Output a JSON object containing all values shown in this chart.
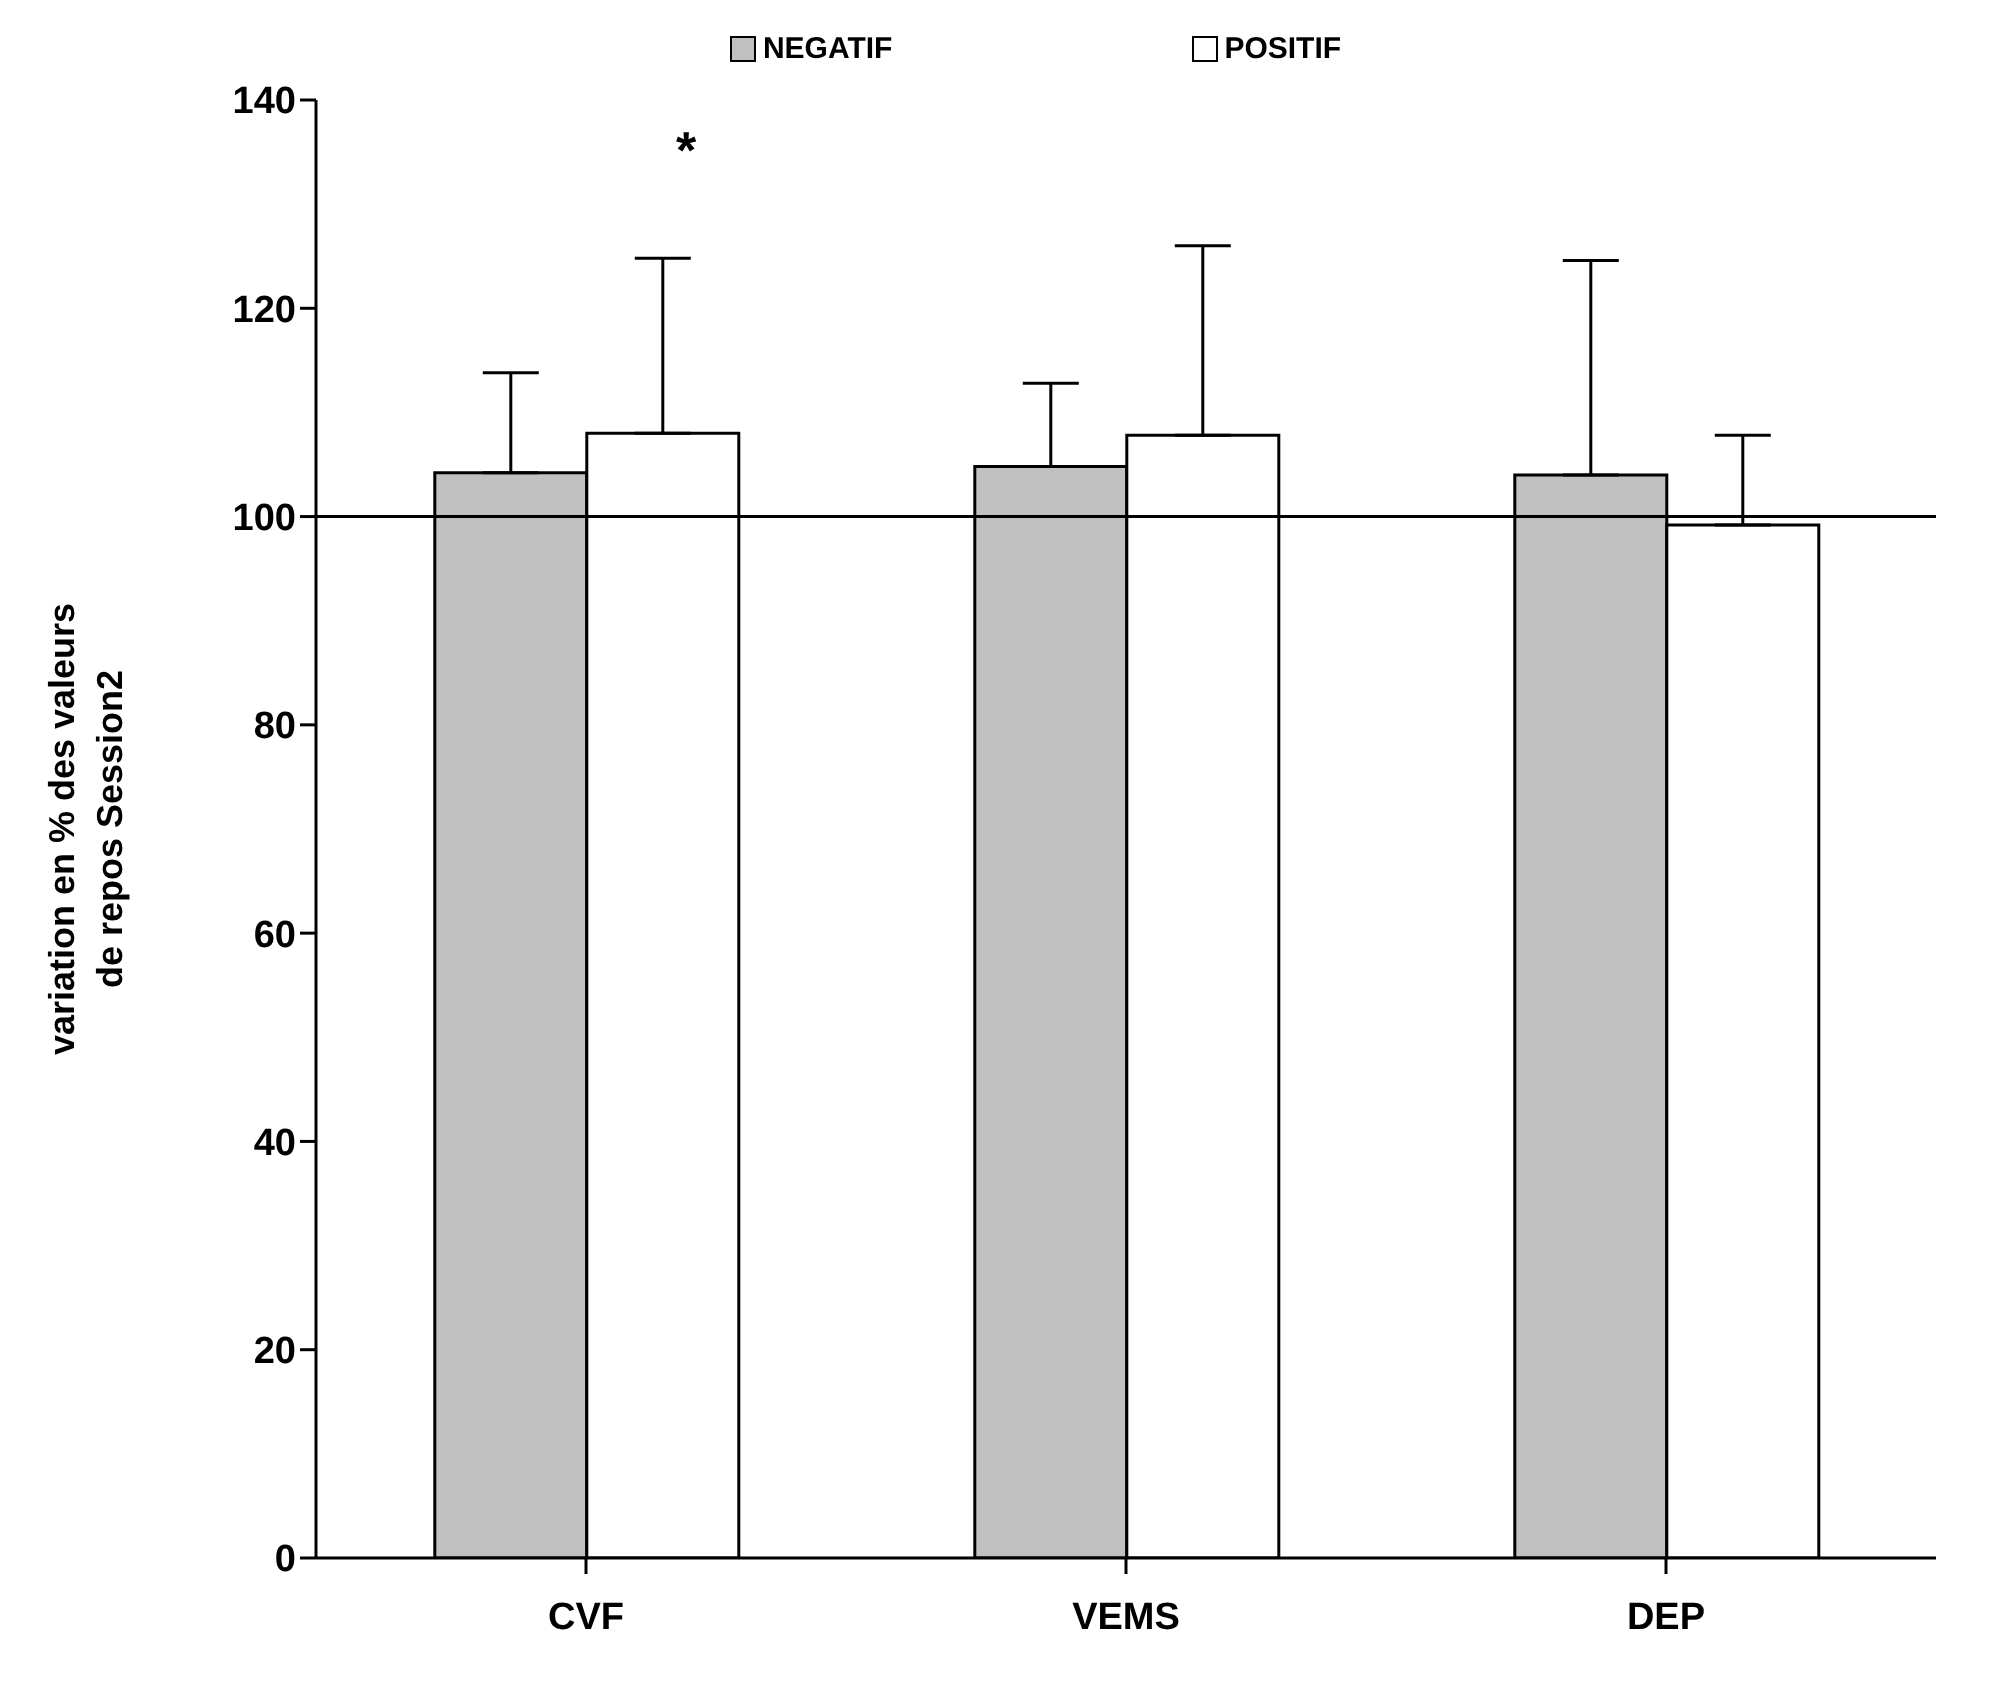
{
  "chart_data": {
    "type": "bar",
    "ylabel": "variation en % des valeurs\nde repos Session2",
    "categories": [
      "CVF",
      "VEMS",
      "DEP"
    ],
    "series": [
      {
        "name": "NEGATIF",
        "color": "#c0c0c0",
        "values": [
          104.2,
          104.8,
          104
        ],
        "errors": [
          [
            104.2,
            113.8
          ],
          [
            104.8,
            112.8
          ],
          [
            104,
            124.6
          ]
        ]
      },
      {
        "name": "POSITIF",
        "color": "#ffffff",
        "values": [
          108,
          107.8,
          99.2
        ],
        "errors": [
          [
            108,
            124.8
          ],
          [
            107.8,
            126
          ],
          [
            99.2,
            107.8
          ]
        ]
      }
    ],
    "ylim": [
      0,
      140
    ],
    "yticks": [
      0,
      20,
      40,
      60,
      80,
      100,
      120,
      140
    ],
    "grid": false,
    "legend": "top",
    "ref_lines": [
      {
        "axis": "y",
        "value": 100
      }
    ],
    "annotations": [
      "*"
    ]
  }
}
